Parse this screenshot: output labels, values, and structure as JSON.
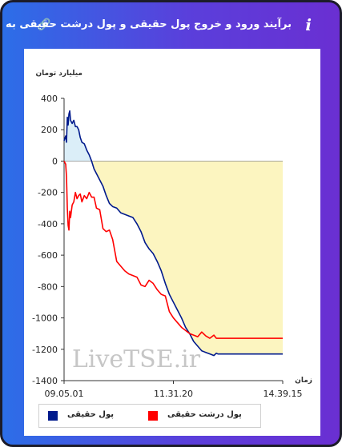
{
  "header": {
    "title": "برآیند ورود و خروج پول حقیقی و پول درشت حقیقی به بازار",
    "info_icon": "i"
  },
  "chart_data": {
    "type": "line",
    "ylabel": "میلیارد تومان",
    "xlabel": "زمان",
    "ylim": [
      -1400,
      400
    ],
    "yticks": [
      400,
      200,
      0,
      -200,
      -400,
      -600,
      -800,
      -1000,
      -1200,
      -1400
    ],
    "xticks": [
      "09.05.01",
      "11.31.20",
      "14.39.15"
    ],
    "watermark": "LiveTSE.ir",
    "grid": false,
    "legend_position": "bottom",
    "colors": {
      "real": "#001a8c",
      "big_real": "#ff0000",
      "fill_positive": "#dbeef8",
      "fill_negative": "#fcf5c0"
    },
    "x": [
      0,
      2,
      3,
      4,
      5,
      6,
      7,
      8,
      10,
      12,
      14,
      16,
      18,
      20,
      22,
      25,
      28,
      31,
      34,
      37,
      40,
      44,
      48,
      52,
      56,
      60,
      65,
      70,
      75,
      80,
      85,
      90,
      95,
      100,
      105,
      110,
      115,
      120,
      125,
      130,
      135,
      140,
      145,
      150,
      155,
      160,
      165,
      170,
      175,
      180,
      185,
      188,
      190,
      200,
      220,
      240,
      270
    ],
    "series": [
      {
        "name": "پول حقیقی",
        "values": [
          130,
          160,
          120,
          280,
          230,
          300,
          320,
          260,
          240,
          260,
          220,
          220,
          200,
          150,
          120,
          110,
          70,
          40,
          0,
          -50,
          -80,
          -120,
          -160,
          -220,
          -270,
          -290,
          -300,
          -330,
          -340,
          -350,
          -360,
          -400,
          -450,
          -520,
          -560,
          -590,
          -640,
          -700,
          -780,
          -850,
          -900,
          -950,
          -1000,
          -1060,
          -1100,
          -1150,
          -1180,
          -1210,
          -1220,
          -1230,
          -1240,
          -1225,
          -1230,
          -1230,
          -1230,
          -1230,
          -1230
        ]
      },
      {
        "name": "پول درشت حقیقی",
        "values": [
          0,
          -20,
          -100,
          -300,
          -410,
          -440,
          -320,
          -360,
          -280,
          -260,
          -200,
          -240,
          -220,
          -210,
          -260,
          -220,
          -240,
          -200,
          -230,
          -230,
          -300,
          -310,
          -430,
          -450,
          -440,
          -500,
          -640,
          -670,
          -700,
          -720,
          -730,
          -740,
          -790,
          -800,
          -760,
          -780,
          -820,
          -850,
          -860,
          -960,
          -1000,
          -1030,
          -1060,
          -1080,
          -1100,
          -1110,
          -1120,
          -1090,
          -1115,
          -1130,
          -1110,
          -1130,
          -1130,
          -1130,
          -1130,
          -1130,
          -1130
        ]
      }
    ]
  }
}
